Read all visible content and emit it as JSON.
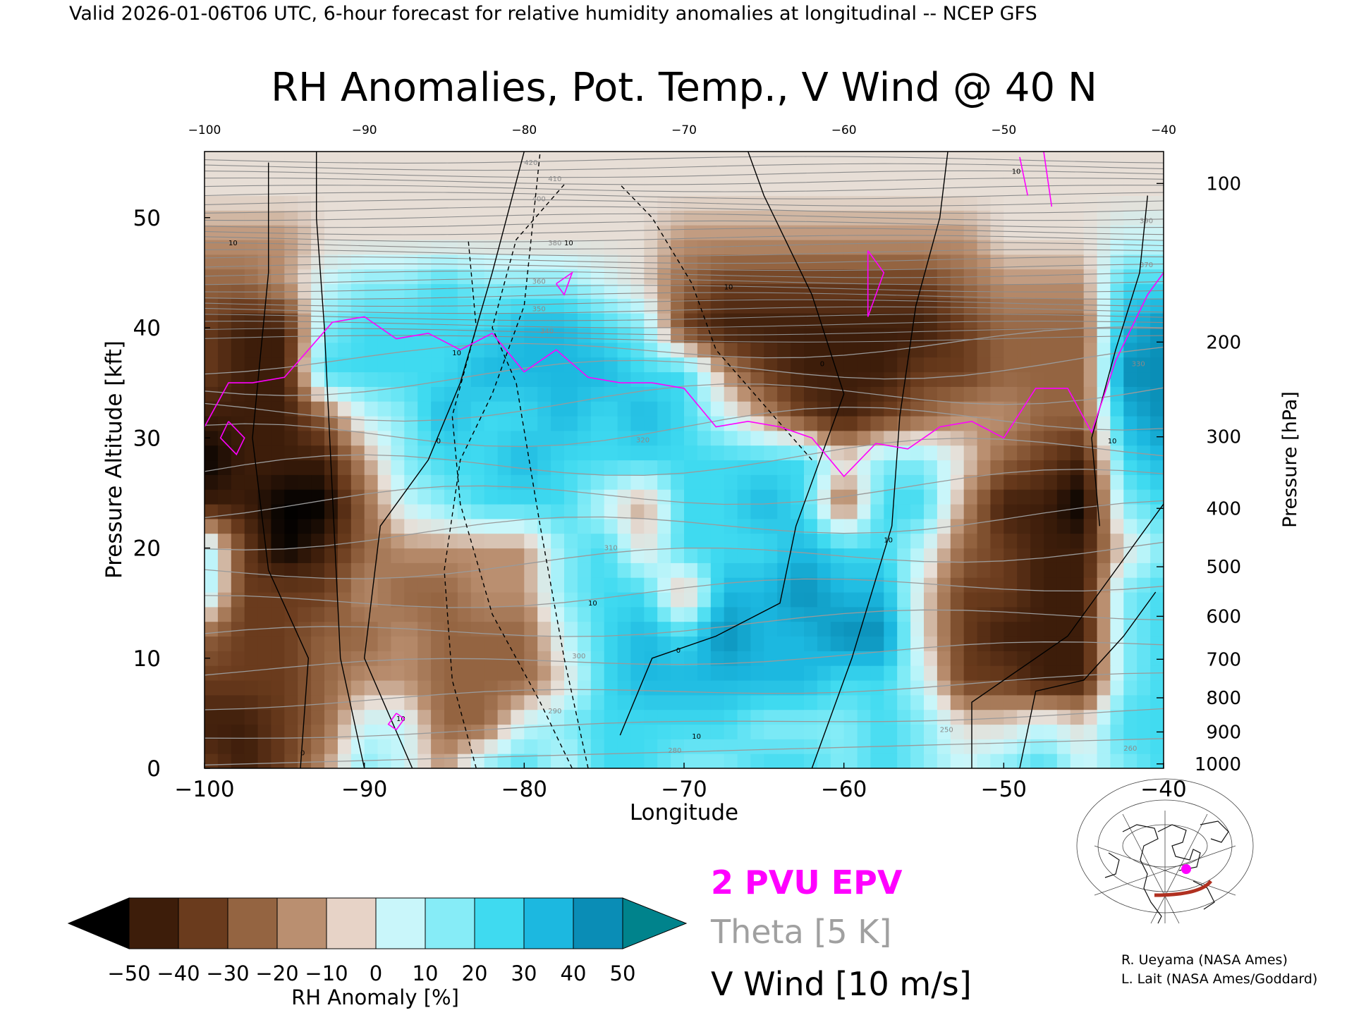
{
  "header": "Valid 2026-01-06T06 UTC, 6-hour forecast for relative humidity anomalies at longitudinal -- NCEP GFS",
  "chart_data": {
    "type": "heatmap",
    "title": "RH Anomalies, Pot. Temp., V Wind @ 40 N",
    "xlabel": "Longitude",
    "ylabel": "Pressure Altitude [kft]",
    "y2label": "Pressure [hPa]",
    "xlim": [
      -100,
      -40
    ],
    "ylim": [
      0,
      56
    ],
    "x_ticks": [
      -100,
      -90,
      -80,
      -70,
      -60,
      -50,
      -40
    ],
    "x_tick_labels": [
      "−100",
      "−90",
      "−80",
      "−70",
      "−60",
      "−50",
      "−40"
    ],
    "top_ticks": [
      -100,
      -90,
      -80,
      -70,
      -60,
      -50,
      -40
    ],
    "y_ticks": [
      0,
      10,
      20,
      30,
      40,
      50
    ],
    "pressure_ticks": [
      {
        "hpa": "100",
        "kft": 53.1
      },
      {
        "hpa": "200",
        "kft": 38.7
      },
      {
        "hpa": "300",
        "kft": 30.1
      },
      {
        "hpa": "400",
        "kft": 23.6
      },
      {
        "hpa": "500",
        "kft": 18.3
      },
      {
        "hpa": "600",
        "kft": 13.8
      },
      {
        "hpa": "700",
        "kft": 9.9
      },
      {
        "hpa": "800",
        "kft": 6.4
      },
      {
        "hpa": "900",
        "kft": 3.3
      },
      {
        "hpa": "1000",
        "kft": 0.4
      }
    ],
    "rh_anomaly_grid": {
      "x": [
        -100,
        -97.5,
        -95,
        -92.5,
        -90,
        -87.5,
        -85,
        -82.5,
        -80,
        -77.5,
        -75,
        -72.5,
        -70,
        -67.5,
        -65,
        -62.5,
        -60,
        -57.5,
        -55,
        -52.5,
        -50,
        -47.5,
        -45,
        -42.5,
        -40
      ],
      "y": [
        0,
        4,
        8,
        12,
        16,
        20,
        24,
        28,
        32,
        36,
        40,
        44,
        48,
        52,
        56
      ],
      "values": [
        [
          -30,
          -40,
          -30,
          -10,
          20,
          10,
          -10,
          20,
          30,
          10,
          30,
          30,
          20,
          20,
          30,
          30,
          20,
          30,
          20,
          10,
          20,
          30,
          10,
          20,
          30
        ],
        [
          -40,
          -40,
          -30,
          -20,
          10,
          10,
          -20,
          -20,
          10,
          20,
          30,
          30,
          30,
          30,
          20,
          20,
          20,
          30,
          20,
          0,
          0,
          10,
          0,
          30,
          30
        ],
        [
          -30,
          -30,
          -30,
          -20,
          -10,
          -10,
          -20,
          -20,
          -20,
          0,
          30,
          40,
          40,
          40,
          40,
          40,
          30,
          30,
          10,
          -30,
          -30,
          -40,
          -40,
          20,
          30
        ],
        [
          -20,
          -30,
          -30,
          -20,
          -20,
          -10,
          -20,
          -20,
          -20,
          10,
          30,
          40,
          30,
          50,
          40,
          40,
          50,
          50,
          0,
          -30,
          -40,
          -40,
          -40,
          20,
          30
        ],
        [
          20,
          -30,
          -30,
          -30,
          -10,
          -20,
          -20,
          -10,
          -10,
          20,
          30,
          30,
          -10,
          40,
          40,
          50,
          40,
          40,
          0,
          -30,
          -30,
          -40,
          -40,
          20,
          30
        ],
        [
          20,
          -30,
          -50,
          -40,
          -20,
          -10,
          -10,
          -10,
          -10,
          20,
          30,
          0,
          30,
          30,
          30,
          40,
          30,
          30,
          10,
          -20,
          -30,
          -40,
          -40,
          0,
          20
        ],
        [
          -40,
          -40,
          -50,
          -50,
          -20,
          10,
          20,
          30,
          30,
          30,
          10,
          -10,
          30,
          30,
          40,
          30,
          -20,
          30,
          30,
          -10,
          -40,
          -40,
          -50,
          20,
          30
        ],
        [
          -50,
          -40,
          -40,
          -40,
          -10,
          20,
          30,
          30,
          40,
          30,
          30,
          30,
          30,
          30,
          30,
          30,
          0,
          20,
          20,
          0,
          -20,
          -30,
          -40,
          30,
          40
        ],
        [
          -40,
          -40,
          -40,
          -20,
          10,
          20,
          40,
          30,
          30,
          40,
          30,
          40,
          30,
          10,
          -10,
          -30,
          -40,
          -30,
          -20,
          -10,
          -10,
          -20,
          -20,
          40,
          50
        ],
        [
          -30,
          -40,
          -40,
          30,
          30,
          30,
          30,
          40,
          40,
          40,
          40,
          30,
          30,
          -10,
          -30,
          -40,
          -40,
          -40,
          -30,
          -30,
          -20,
          -20,
          -20,
          50,
          50
        ],
        [
          -30,
          -40,
          -40,
          20,
          30,
          30,
          30,
          30,
          40,
          40,
          30,
          20,
          -30,
          -40,
          -40,
          -40,
          -40,
          -40,
          -40,
          -30,
          -20,
          -20,
          -20,
          40,
          50
        ],
        [
          -20,
          -20,
          -10,
          10,
          20,
          20,
          30,
          20,
          20,
          20,
          10,
          0,
          -20,
          -30,
          -30,
          -30,
          -30,
          -30,
          -30,
          -20,
          -10,
          -10,
          -10,
          30,
          30
        ],
        [
          -10,
          -10,
          -10,
          0,
          0,
          0,
          0,
          0,
          0,
          0,
          0,
          0,
          -10,
          -10,
          -10,
          -10,
          -10,
          -10,
          -10,
          -10,
          0,
          0,
          0,
          10,
          10
        ],
        [
          0,
          0,
          0,
          0,
          0,
          0,
          0,
          0,
          0,
          0,
          0,
          0,
          0,
          0,
          0,
          0,
          0,
          0,
          0,
          0,
          0,
          0,
          0,
          0,
          0
        ],
        [
          0,
          0,
          0,
          0,
          0,
          0,
          0,
          0,
          0,
          0,
          0,
          0,
          0,
          0,
          0,
          0,
          0,
          0,
          0,
          0,
          0,
          0,
          0,
          0,
          0
        ]
      ]
    },
    "pvu2_line": [
      [
        -100,
        31
      ],
      [
        -98.5,
        35
      ],
      [
        -97,
        35
      ],
      [
        -95,
        35.5
      ],
      [
        -93.5,
        38
      ],
      [
        -92,
        40.5
      ],
      [
        -90,
        41
      ],
      [
        -88,
        39
      ],
      [
        -86,
        39.5
      ],
      [
        -84,
        38
      ],
      [
        -82,
        39.5
      ],
      [
        -80,
        36
      ],
      [
        -78,
        38
      ],
      [
        -76,
        35.5
      ],
      [
        -74,
        35
      ],
      [
        -72,
        35
      ],
      [
        -70,
        34.5
      ],
      [
        -68,
        31
      ],
      [
        -66,
        31.5
      ],
      [
        -64,
        31
      ],
      [
        -62,
        30
      ],
      [
        -60,
        26.5
      ],
      [
        -58,
        29.5
      ],
      [
        -56,
        29
      ],
      [
        -54,
        31
      ],
      [
        -52,
        31.5
      ],
      [
        -50,
        30
      ],
      [
        -48,
        34.5
      ],
      [
        -46,
        34.5
      ],
      [
        -44.5,
        30.5
      ],
      [
        -43,
        37
      ],
      [
        -41,
        43
      ],
      [
        -40,
        45
      ]
    ],
    "theta_levels": [
      280,
      290,
      300,
      310,
      320,
      330,
      340,
      350,
      360,
      370,
      380,
      390,
      400,
      410,
      420
    ],
    "theta_labels_shown": [
      "250",
      "260",
      "280",
      "290",
      "300",
      "310",
      "320",
      "330",
      "340",
      "350",
      "360",
      "370",
      "380",
      "390",
      "400",
      "410",
      "420"
    ],
    "v_wind_labels_shown": [
      "0",
      "10",
      "-10"
    ],
    "legend": {
      "items": [
        {
          "label": "2 PVU EPV",
          "color": "#ff00ff"
        },
        {
          "label": "Theta [5 K]",
          "color": "#a0a0a0"
        },
        {
          "label": "V Wind [10 m/s]",
          "color": "#000000"
        }
      ]
    },
    "colorbar": {
      "label": "RH Anomaly [%]",
      "tick_labels": [
        "−50",
        "−40",
        "−30",
        "−20",
        "−10",
        "0",
        "10",
        "20",
        "30",
        "40",
        "50"
      ],
      "ticks": [
        -50,
        -40,
        -30,
        -20,
        -10,
        0,
        10,
        20,
        30,
        40,
        50
      ],
      "colors": [
        "#000000",
        "#3d1d0a",
        "#6a3b1d",
        "#946441",
        "#ba8f70",
        "#e7d3c7",
        "#c9f6fa",
        "#86ecf7",
        "#3fdaf0",
        "#1cb8e0",
        "#0a8db6",
        "#00838c"
      ]
    }
  },
  "locator_map": {
    "track_color": "#b03020",
    "marker_color": "#ff00ff"
  },
  "credits": [
    "R. Ueyama (NASA Ames)",
    "L. Lait (NASA Ames/Goddard)"
  ]
}
